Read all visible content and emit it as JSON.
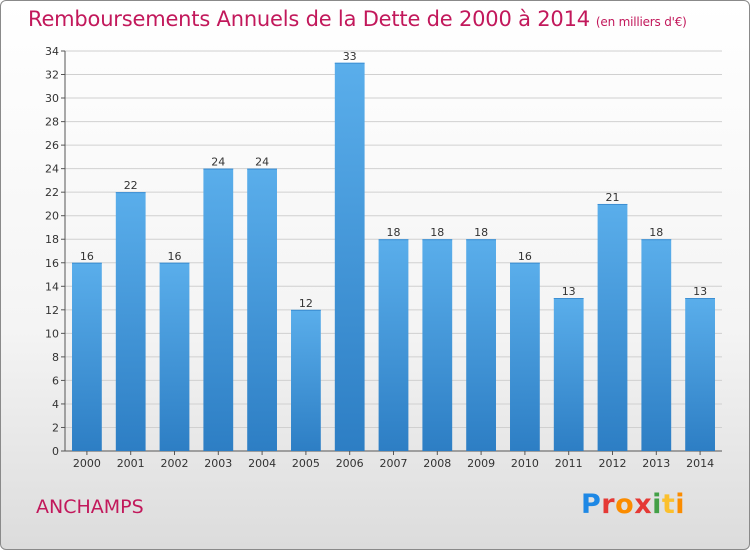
{
  "title": "Remboursements Annuels de la Dette de 2000 à 2014",
  "unit": "(en milliers d'€)",
  "commune": "ANCHAMPS",
  "logo": {
    "text": "Proxiti",
    "letter_colors": [
      "#1e88e5",
      "#e53935",
      "#fb8c00",
      "#e53935",
      "#43a047",
      "#fbc02d",
      "#fb8c00"
    ]
  },
  "colors": {
    "bar_top": "#5aaeeb",
    "bar_bottom": "#2d7ec4",
    "title": "#c2185b",
    "grid": "#d0d0d0"
  },
  "chart_data": {
    "type": "bar",
    "categories": [
      "2000",
      "2001",
      "2002",
      "2003",
      "2004",
      "2005",
      "2006",
      "2007",
      "2008",
      "2009",
      "2010",
      "2011",
      "2012",
      "2013",
      "2014"
    ],
    "values": [
      16,
      22,
      16,
      24,
      24,
      12,
      33,
      18,
      18,
      18,
      16,
      13,
      21,
      18,
      13
    ],
    "ylim": [
      0,
      34
    ],
    "ytick_step": 2,
    "grid": true,
    "data_labels": true
  }
}
